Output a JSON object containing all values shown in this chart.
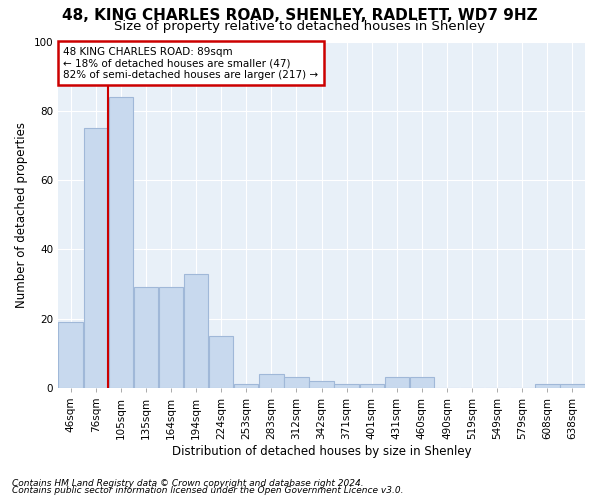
{
  "title1": "48, KING CHARLES ROAD, SHENLEY, RADLETT, WD7 9HZ",
  "title2": "Size of property relative to detached houses in Shenley",
  "xlabel": "Distribution of detached houses by size in Shenley",
  "ylabel": "Number of detached properties",
  "footnote1": "Contains HM Land Registry data © Crown copyright and database right 2024.",
  "footnote2": "Contains public sector information licensed under the Open Government Licence v3.0.",
  "annotation_title": "48 KING CHARLES ROAD: 89sqm",
  "annotation_line2": "← 18% of detached houses are smaller (47)",
  "annotation_line3": "82% of semi-detached houses are larger (217) →",
  "bar_labels": [
    "46sqm",
    "76sqm",
    "105sqm",
    "135sqm",
    "164sqm",
    "194sqm",
    "224sqm",
    "253sqm",
    "283sqm",
    "312sqm",
    "342sqm",
    "371sqm",
    "401sqm",
    "431sqm",
    "460sqm",
    "490sqm",
    "519sqm",
    "549sqm",
    "579sqm",
    "608sqm",
    "638sqm"
  ],
  "bar_values": [
    19,
    75,
    84,
    29,
    29,
    33,
    15,
    1,
    4,
    3,
    2,
    1,
    1,
    3,
    3,
    0,
    0,
    0,
    0,
    1,
    1
  ],
  "bar_color": "#c8d9ee",
  "bar_edge_color": "#a0b8d8",
  "red_line_x": 1.5,
  "ylim": [
    0,
    100
  ],
  "background_color": "#ffffff",
  "plot_bg_color": "#e8f0f8",
  "grid_color": "#ffffff",
  "title_fontsize": 11,
  "subtitle_fontsize": 9.5,
  "annotation_box_color": "#ffffff",
  "annotation_box_edge": "#cc0000",
  "red_line_color": "#cc0000",
  "tick_fontsize": 7.5,
  "xlabel_fontsize": 8.5,
  "ylabel_fontsize": 8.5,
  "footnote_fontsize": 6.5
}
